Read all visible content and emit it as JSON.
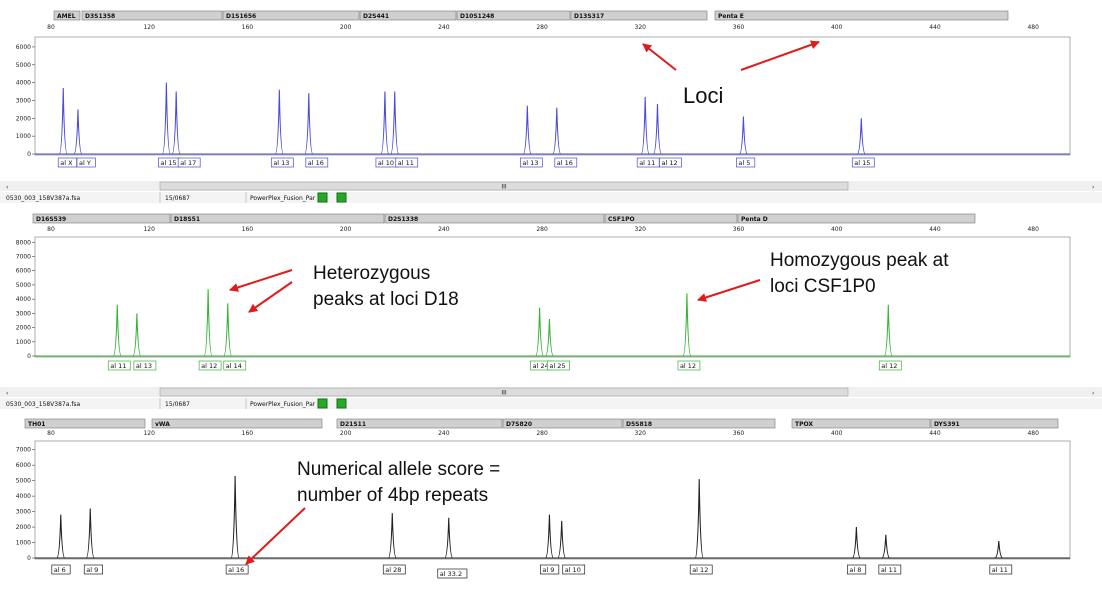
{
  "colors": {
    "blue_trace": "#4b4bd6",
    "green_trace": "#37b337",
    "black_trace": "#222222",
    "annotation_arrow": "#e01b1b",
    "marker": "#e01b1b",
    "locus_bar": "#d0d0d0",
    "divider": "#27b6c8"
  },
  "scale": {
    "ticks": [
      "80",
      "120",
      "160",
      "200",
      "240",
      "280",
      "320",
      "360",
      "400",
      "440",
      "480"
    ]
  },
  "panels": [
    {
      "id": "blue",
      "color_key": "blue_trace",
      "y_ticks": [
        "0",
        "1000",
        "2000",
        "3000",
        "4000",
        "5000",
        "6000"
      ],
      "loci": [
        {
          "label": "AMEL"
        },
        {
          "label": "D3S1358"
        },
        {
          "label": "D1S1656"
        },
        {
          "label": "D2S441"
        },
        {
          "label": "D10S1248"
        },
        {
          "label": "D13S317"
        },
        {
          "label": "Penta E"
        }
      ],
      "alleles": [
        "X",
        "Y",
        "15",
        "17",
        "13",
        "16",
        "10",
        "11",
        "13",
        "16",
        "11",
        "12",
        "5",
        "15"
      ],
      "peaks": [
        {
          "bp": 85,
          "rfu": 3700
        },
        {
          "bp": 91,
          "rfu": 2500
        },
        {
          "bp": 127,
          "rfu": 4000
        },
        {
          "bp": 131,
          "rfu": 3500
        },
        {
          "bp": 173,
          "rfu": 3600
        },
        {
          "bp": 185,
          "rfu": 3400
        },
        {
          "bp": 216,
          "rfu": 3500
        },
        {
          "bp": 220,
          "rfu": 3500
        },
        {
          "bp": 274,
          "rfu": 2700
        },
        {
          "bp": 286,
          "rfu": 2600
        },
        {
          "bp": 322,
          "rfu": 3200
        },
        {
          "bp": 327,
          "rfu": 2800
        },
        {
          "bp": 362,
          "rfu": 2100
        },
        {
          "bp": 410,
          "rfu": 2000
        }
      ],
      "allele_labels": [
        "al X",
        "al Y",
        "al 15",
        "al 17",
        "al 13",
        "al 16",
        "al 10",
        "al 11",
        "al 13",
        "al 16",
        "al 11",
        "al 12",
        "al 5",
        "al 15"
      ]
    },
    {
      "id": "green",
      "color_key": "green_trace",
      "file_info": [
        "0530_003_158V387a.fsa",
        "15/0687",
        "PowerPlex_Fusion_Par"
      ],
      "y_ticks": [
        "0",
        "1000",
        "2000",
        "3000",
        "4000",
        "5000",
        "6000",
        "7000",
        "8000"
      ],
      "loci": [
        {
          "label": "D16S539"
        },
        {
          "label": "D18S51"
        },
        {
          "label": "D2S1338"
        },
        {
          "label": "CSF1PO"
        },
        {
          "label": "Penta D"
        }
      ],
      "peaks": [
        {
          "bp": 107,
          "rfu": 3600
        },
        {
          "bp": 115,
          "rfu": 3000
        },
        {
          "bp": 144,
          "rfu": 4700
        },
        {
          "bp": 152,
          "rfu": 3700
        },
        {
          "bp": 279,
          "rfu": 3400
        },
        {
          "bp": 283,
          "rfu": 2600
        },
        {
          "bp": 339,
          "rfu": 4400
        },
        {
          "bp": 421,
          "rfu": 3600
        }
      ],
      "allele_labels": [
        "al 11",
        "al 13",
        "al 12",
        "al 14",
        "al 24",
        "al 25",
        "al 12",
        "al 12"
      ]
    },
    {
      "id": "black",
      "color_key": "black_trace",
      "file_info": [
        "0530_003_158V387a.fsa",
        "15/0687",
        "PowerPlex_Fusion_Par"
      ],
      "y_ticks": [
        "0",
        "1000",
        "2000",
        "3000",
        "4000",
        "5000",
        "6000",
        "7000"
      ],
      "loci": [
        {
          "label": "TH01"
        },
        {
          "label": "vWA"
        },
        {
          "label": "D21S11"
        },
        {
          "label": "D7S820"
        },
        {
          "label": "D5S818"
        },
        {
          "label": "TPOX"
        },
        {
          "label": "DYS391"
        }
      ],
      "peaks": [
        {
          "bp": 84,
          "rfu": 2800
        },
        {
          "bp": 96,
          "rfu": 3200
        },
        {
          "bp": 155,
          "rfu": 5300
        },
        {
          "bp": 219,
          "rfu": 2900
        },
        {
          "bp": 242,
          "rfu": 2600
        },
        {
          "bp": 283,
          "rfu": 2800
        },
        {
          "bp": 288,
          "rfu": 2400
        },
        {
          "bp": 344,
          "rfu": 5100
        },
        {
          "bp": 408,
          "rfu": 2000
        },
        {
          "bp": 420,
          "rfu": 1500
        },
        {
          "bp": 466,
          "rfu": 1100
        }
      ],
      "allele_labels": [
        "al 6",
        "al 9",
        "al 16",
        "al 28",
        "al 33.2",
        "al 9",
        "al 10",
        "al 12",
        "al 8",
        "al 11",
        "al 11"
      ]
    }
  ],
  "scrollbar": {
    "thumb_label": "III"
  },
  "annotations": {
    "loci": "Loci",
    "heterozygous_line1": "Heterozygous",
    "heterozygous_line2": "peaks at loci D18",
    "homozygous_line1": "Homozygous  peak at",
    "homozygous_line2": "loci CSF1P0",
    "numerical_line1": "Numerical allele score =",
    "numerical_line2": "number of 4bp repeats"
  }
}
